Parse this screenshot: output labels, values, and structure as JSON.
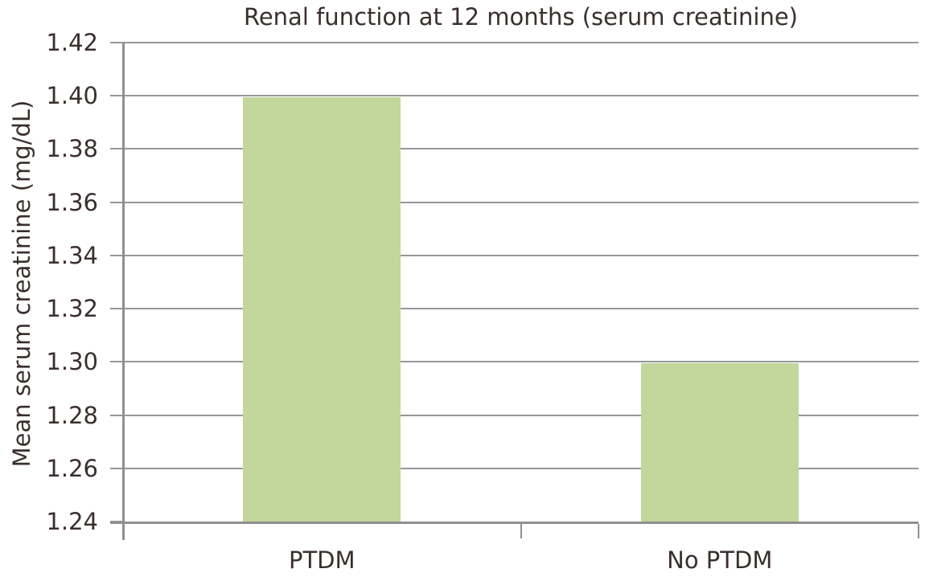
{
  "chart_data": {
    "type": "bar",
    "title": "Renal function at 12 months (serum creatinine)",
    "ylabel": "Mean serum creatinine (mg/dL)",
    "xlabel": "",
    "categories": [
      "PTDM",
      "No PTDM"
    ],
    "values": [
      1.4,
      1.3
    ],
    "ylim": [
      1.24,
      1.42
    ],
    "ytick_step": 0.02,
    "ytick_labels": [
      "1.24",
      "1.26",
      "1.28",
      "1.30",
      "1.32",
      "1.34",
      "1.36",
      "1.38",
      "1.40",
      "1.42"
    ],
    "grid": true,
    "legend": false,
    "colors": {
      "bar_fill": "#c3d69b",
      "gridline": "#979797",
      "axis": "#8f8f8f",
      "text": "#3a2f2d",
      "background": "#ffffff"
    }
  }
}
